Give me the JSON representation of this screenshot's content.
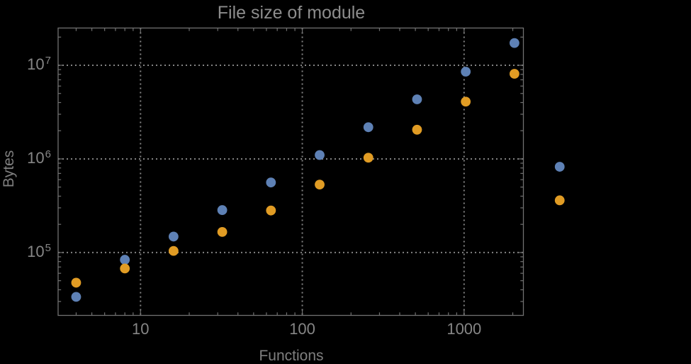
{
  "chart_data": {
    "type": "scatter",
    "title": "File size of module",
    "xlabel": "Functions",
    "ylabel": "Bytes",
    "x_scale": "log",
    "y_scale": "log",
    "xlim": [
      3.094,
      2326
    ],
    "ylim": [
      21300,
      25000000
    ],
    "grid": "dotted lines at major decade ticks",
    "legend": "none",
    "frame": true,
    "x": [
      4,
      8,
      16,
      32,
      64,
      128,
      256,
      512,
      1024,
      2048,
      3900
    ],
    "series": [
      {
        "name": "series-blue",
        "color": "#5e81b5",
        "values": [
          33600,
          83700,
          148000,
          284000,
          560000,
          1100000,
          2180000,
          4330000,
          8550000,
          17300000,
          824000
        ]
      },
      {
        "name": "series-orange",
        "color": "#e19c24",
        "values": [
          47600,
          67500,
          104000,
          166000,
          281000,
          532000,
          1030000,
          2050000,
          4090000,
          8110000,
          361000
        ]
      }
    ],
    "x_ticks": [
      {
        "value": 10,
        "label": "10"
      },
      {
        "value": 100,
        "label": "100"
      },
      {
        "value": 1000,
        "label": "1000"
      }
    ],
    "y_ticks": [
      {
        "value": 100000,
        "base": "10",
        "exp": "5"
      },
      {
        "value": 1000000,
        "base": "10",
        "exp": "6"
      },
      {
        "value": 10000000,
        "base": "10",
        "exp": "7"
      }
    ],
    "note": "two rightmost points are drawn outside the right frame edge (unclipped)"
  },
  "colors": {
    "background": "#000000",
    "frame": "#717171",
    "gridline": "#838383",
    "title_text": "#8d8d8d",
    "tick_label_text": "#868686",
    "axis_label_text": "#7f7f7f"
  }
}
